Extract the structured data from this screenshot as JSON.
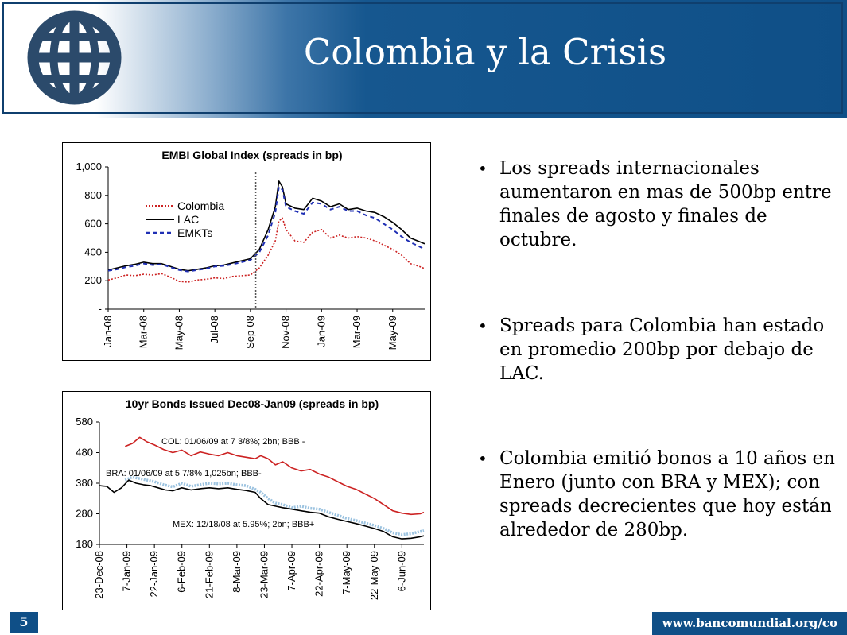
{
  "slide": {
    "title": "Colombia y la Crisis",
    "page_number": "5",
    "url": "www.bancomundial.org/co",
    "logo": "world-bank-globe-logo",
    "colors": {
      "header": "#0f4f87",
      "colombia": "#cc2222",
      "lac": "#000000",
      "emkts": "#1f2fb4",
      "bra": "#9cc3e0",
      "mex": "#000000"
    }
  },
  "bullets": [
    "Los spreads internacionales aumentaron en mas de 500bp entre finales de agosto y finales de octubre.",
    "Spreads para Colombia han estado en promedio 200bp por debajo de LAC.",
    "Colombia emitió bonos a 10 años en Enero (junto con BRA y MEX); con spreads decrecientes que hoy están alrededor de 280bp."
  ],
  "chart_data": [
    {
      "type": "line",
      "title": "EMBI Global Index (spreads in bp)",
      "ylim": [
        0,
        1000
      ],
      "yticks": [
        "-",
        "200",
        "400",
        "600",
        "800",
        "1,000"
      ],
      "ytick_values": [
        0,
        200,
        400,
        600,
        800,
        1000
      ],
      "xticks": [
        "Jan-08",
        "Mar-08",
        "May-08",
        "Jul-08",
        "Sep-08",
        "Nov-08",
        "Jan-09",
        "Mar-09",
        "May-09"
      ],
      "xtick_month_index": [
        0,
        2,
        4,
        6,
        8,
        10,
        12,
        14,
        16
      ],
      "xrange_month_index": [
        0,
        17.8
      ],
      "legend_position": "left",
      "vertical_marker_month_index": 8.3,
      "series": [
        {
          "name": "Colombia",
          "color": "#cc2222",
          "style": "dotted",
          "points": [
            [
              0,
              205
            ],
            [
              0.5,
              220
            ],
            [
              1,
              240
            ],
            [
              1.5,
              235
            ],
            [
              2,
              245
            ],
            [
              2.5,
              240
            ],
            [
              3,
              250
            ],
            [
              3.5,
              225
            ],
            [
              4,
              195
            ],
            [
              4.5,
              190
            ],
            [
              5,
              205
            ],
            [
              5.5,
              210
            ],
            [
              6,
              220
            ],
            [
              6.5,
              215
            ],
            [
              7,
              230
            ],
            [
              7.5,
              235
            ],
            [
              8,
              240
            ],
            [
              8.5,
              290
            ],
            [
              9,
              380
            ],
            [
              9.4,
              480
            ],
            [
              9.6,
              620
            ],
            [
              9.8,
              640
            ],
            [
              10,
              560
            ],
            [
              10.5,
              480
            ],
            [
              11,
              470
            ],
            [
              11.5,
              540
            ],
            [
              12,
              560
            ],
            [
              12.5,
              500
            ],
            [
              13,
              520
            ],
            [
              13.5,
              500
            ],
            [
              14,
              510
            ],
            [
              14.5,
              500
            ],
            [
              15,
              480
            ],
            [
              15.5,
              450
            ],
            [
              16,
              420
            ],
            [
              16.5,
              380
            ],
            [
              17,
              320
            ],
            [
              17.5,
              300
            ],
            [
              17.8,
              285
            ]
          ]
        },
        {
          "name": "LAC",
          "color": "#000000",
          "style": "solid",
          "points": [
            [
              0,
              275
            ],
            [
              0.5,
              290
            ],
            [
              1,
              305
            ],
            [
              1.5,
              315
            ],
            [
              2,
              330
            ],
            [
              2.5,
              320
            ],
            [
              3,
              320
            ],
            [
              3.5,
              300
            ],
            [
              4,
              280
            ],
            [
              4.5,
              270
            ],
            [
              5,
              280
            ],
            [
              5.5,
              290
            ],
            [
              6,
              305
            ],
            [
              6.5,
              310
            ],
            [
              7,
              325
            ],
            [
              7.5,
              340
            ],
            [
              8,
              355
            ],
            [
              8.5,
              420
            ],
            [
              9,
              560
            ],
            [
              9.4,
              720
            ],
            [
              9.6,
              900
            ],
            [
              9.8,
              860
            ],
            [
              10,
              740
            ],
            [
              10.5,
              710
            ],
            [
              11,
              700
            ],
            [
              11.5,
              780
            ],
            [
              12,
              760
            ],
            [
              12.5,
              720
            ],
            [
              13,
              740
            ],
            [
              13.5,
              700
            ],
            [
              14,
              710
            ],
            [
              14.5,
              690
            ],
            [
              15,
              680
            ],
            [
              15.5,
              650
            ],
            [
              16,
              610
            ],
            [
              16.5,
              560
            ],
            [
              17,
              500
            ],
            [
              17.5,
              475
            ],
            [
              17.8,
              460
            ]
          ]
        },
        {
          "name": "EMKTs",
          "color": "#1f2fb4",
          "style": "dashed",
          "points": [
            [
              0,
              270
            ],
            [
              0.5,
              280
            ],
            [
              1,
              295
            ],
            [
              1.5,
              305
            ],
            [
              2,
              320
            ],
            [
              2.5,
              310
            ],
            [
              3,
              315
            ],
            [
              3.5,
              295
            ],
            [
              4,
              275
            ],
            [
              4.5,
              265
            ],
            [
              5,
              275
            ],
            [
              5.5,
              285
            ],
            [
              6,
              300
            ],
            [
              6.5,
              305
            ],
            [
              7,
              315
            ],
            [
              7.5,
              330
            ],
            [
              8,
              345
            ],
            [
              8.5,
              400
            ],
            [
              9,
              520
            ],
            [
              9.4,
              680
            ],
            [
              9.6,
              860
            ],
            [
              9.8,
              840
            ],
            [
              10,
              720
            ],
            [
              10.5,
              690
            ],
            [
              11,
              670
            ],
            [
              11.5,
              750
            ],
            [
              12,
              740
            ],
            [
              12.5,
              700
            ],
            [
              13,
              720
            ],
            [
              13.5,
              690
            ],
            [
              14,
              690
            ],
            [
              14.5,
              660
            ],
            [
              15,
              640
            ],
            [
              15.5,
              600
            ],
            [
              16,
              560
            ],
            [
              16.5,
              510
            ],
            [
              17,
              470
            ],
            [
              17.5,
              440
            ],
            [
              17.8,
              420
            ]
          ]
        }
      ]
    },
    {
      "type": "line",
      "title": "10yr Bonds Issued Dec08-Jan09 (spreads in bp)",
      "ylim": [
        180,
        580
      ],
      "yticks": [
        "180",
        "280",
        "380",
        "480",
        "580"
      ],
      "ytick_values": [
        180,
        280,
        380,
        480,
        580
      ],
      "xticks": [
        "23-Dec-08",
        "7-Jan-09",
        "22-Jan-09",
        "6-Feb-09",
        "21-Feb-09",
        "8-Mar-09",
        "23-Mar-09",
        "7-Apr-09",
        "22-Apr-09",
        "7-May-09",
        "22-May-09",
        "6-Jun-09"
      ],
      "xtick_day_index": [
        0,
        15,
        30,
        45,
        60,
        75,
        90,
        105,
        120,
        135,
        150,
        165
      ],
      "xrange_day_index": [
        0,
        177
      ],
      "annotations": [
        "COL: 01/06/09 at 7 3/8%; 2bn; BBB -",
        "BRA: 01/06/09 at  5 7/8% 1,025bn; BBB-",
        "MEX: 12/18/08 at  5.95%; 2bn; BBB+"
      ],
      "series": [
        {
          "name": "COL",
          "color": "#cc2222",
          "style": "solid",
          "points": [
            [
              14,
              500
            ],
            [
              18,
              510
            ],
            [
              22,
              530
            ],
            [
              26,
              515
            ],
            [
              30,
              505
            ],
            [
              35,
              490
            ],
            [
              40,
              480
            ],
            [
              45,
              488
            ],
            [
              50,
              470
            ],
            [
              55,
              482
            ],
            [
              60,
              475
            ],
            [
              65,
              470
            ],
            [
              70,
              480
            ],
            [
              75,
              470
            ],
            [
              80,
              465
            ],
            [
              85,
              460
            ],
            [
              88,
              470
            ],
            [
              92,
              460
            ],
            [
              96,
              440
            ],
            [
              100,
              450
            ],
            [
              105,
              430
            ],
            [
              110,
              420
            ],
            [
              115,
              425
            ],
            [
              120,
              410
            ],
            [
              125,
              400
            ],
            [
              130,
              385
            ],
            [
              135,
              370
            ],
            [
              140,
              360
            ],
            [
              145,
              345
            ],
            [
              150,
              330
            ],
            [
              155,
              310
            ],
            [
              160,
              290
            ],
            [
              165,
              282
            ],
            [
              170,
              278
            ],
            [
              175,
              280
            ],
            [
              177,
              285
            ]
          ]
        },
        {
          "name": "BRA",
          "color": "#9cc3e0",
          "style": "dotted-thick",
          "points": [
            [
              14,
              390
            ],
            [
              18,
              400
            ],
            [
              22,
              395
            ],
            [
              26,
              390
            ],
            [
              30,
              385
            ],
            [
              35,
              375
            ],
            [
              40,
              368
            ],
            [
              45,
              380
            ],
            [
              50,
              370
            ],
            [
              55,
              375
            ],
            [
              60,
              380
            ],
            [
              65,
              378
            ],
            [
              70,
              380
            ],
            [
              75,
              375
            ],
            [
              80,
              372
            ],
            [
              85,
              360
            ],
            [
              88,
              350
            ],
            [
              92,
              330
            ],
            [
              96,
              315
            ],
            [
              100,
              310
            ],
            [
              105,
              300
            ],
            [
              110,
              305
            ],
            [
              115,
              298
            ],
            [
              120,
              295
            ],
            [
              125,
              285
            ],
            [
              130,
              275
            ],
            [
              135,
              265
            ],
            [
              140,
              258
            ],
            [
              145,
              250
            ],
            [
              150,
              242
            ],
            [
              155,
              232
            ],
            [
              160,
              218
            ],
            [
              165,
              212
            ],
            [
              170,
              215
            ],
            [
              175,
              222
            ],
            [
              177,
              225
            ]
          ]
        },
        {
          "name": "MEX",
          "color": "#000000",
          "style": "solid",
          "points": [
            [
              0,
              372
            ],
            [
              4,
              370
            ],
            [
              8,
              350
            ],
            [
              12,
              365
            ],
            [
              16,
              390
            ],
            [
              20,
              380
            ],
            [
              24,
              375
            ],
            [
              28,
              372
            ],
            [
              32,
              365
            ],
            [
              36,
              358
            ],
            [
              40,
              355
            ],
            [
              45,
              365
            ],
            [
              50,
              358
            ],
            [
              55,
              362
            ],
            [
              60,
              365
            ],
            [
              65,
              362
            ],
            [
              70,
              365
            ],
            [
              75,
              360
            ],
            [
              80,
              356
            ],
            [
              85,
              350
            ],
            [
              88,
              330
            ],
            [
              92,
              310
            ],
            [
              96,
              305
            ],
            [
              100,
              300
            ],
            [
              105,
              295
            ],
            [
              110,
              290
            ],
            [
              115,
              285
            ],
            [
              120,
              282
            ],
            [
              125,
              270
            ],
            [
              130,
              262
            ],
            [
              135,
              255
            ],
            [
              140,
              248
            ],
            [
              145,
              240
            ],
            [
              150,
              232
            ],
            [
              155,
              222
            ],
            [
              160,
              205
            ],
            [
              165,
              198
            ],
            [
              170,
              200
            ],
            [
              175,
              205
            ],
            [
              177,
              208
            ]
          ]
        }
      ]
    }
  ]
}
